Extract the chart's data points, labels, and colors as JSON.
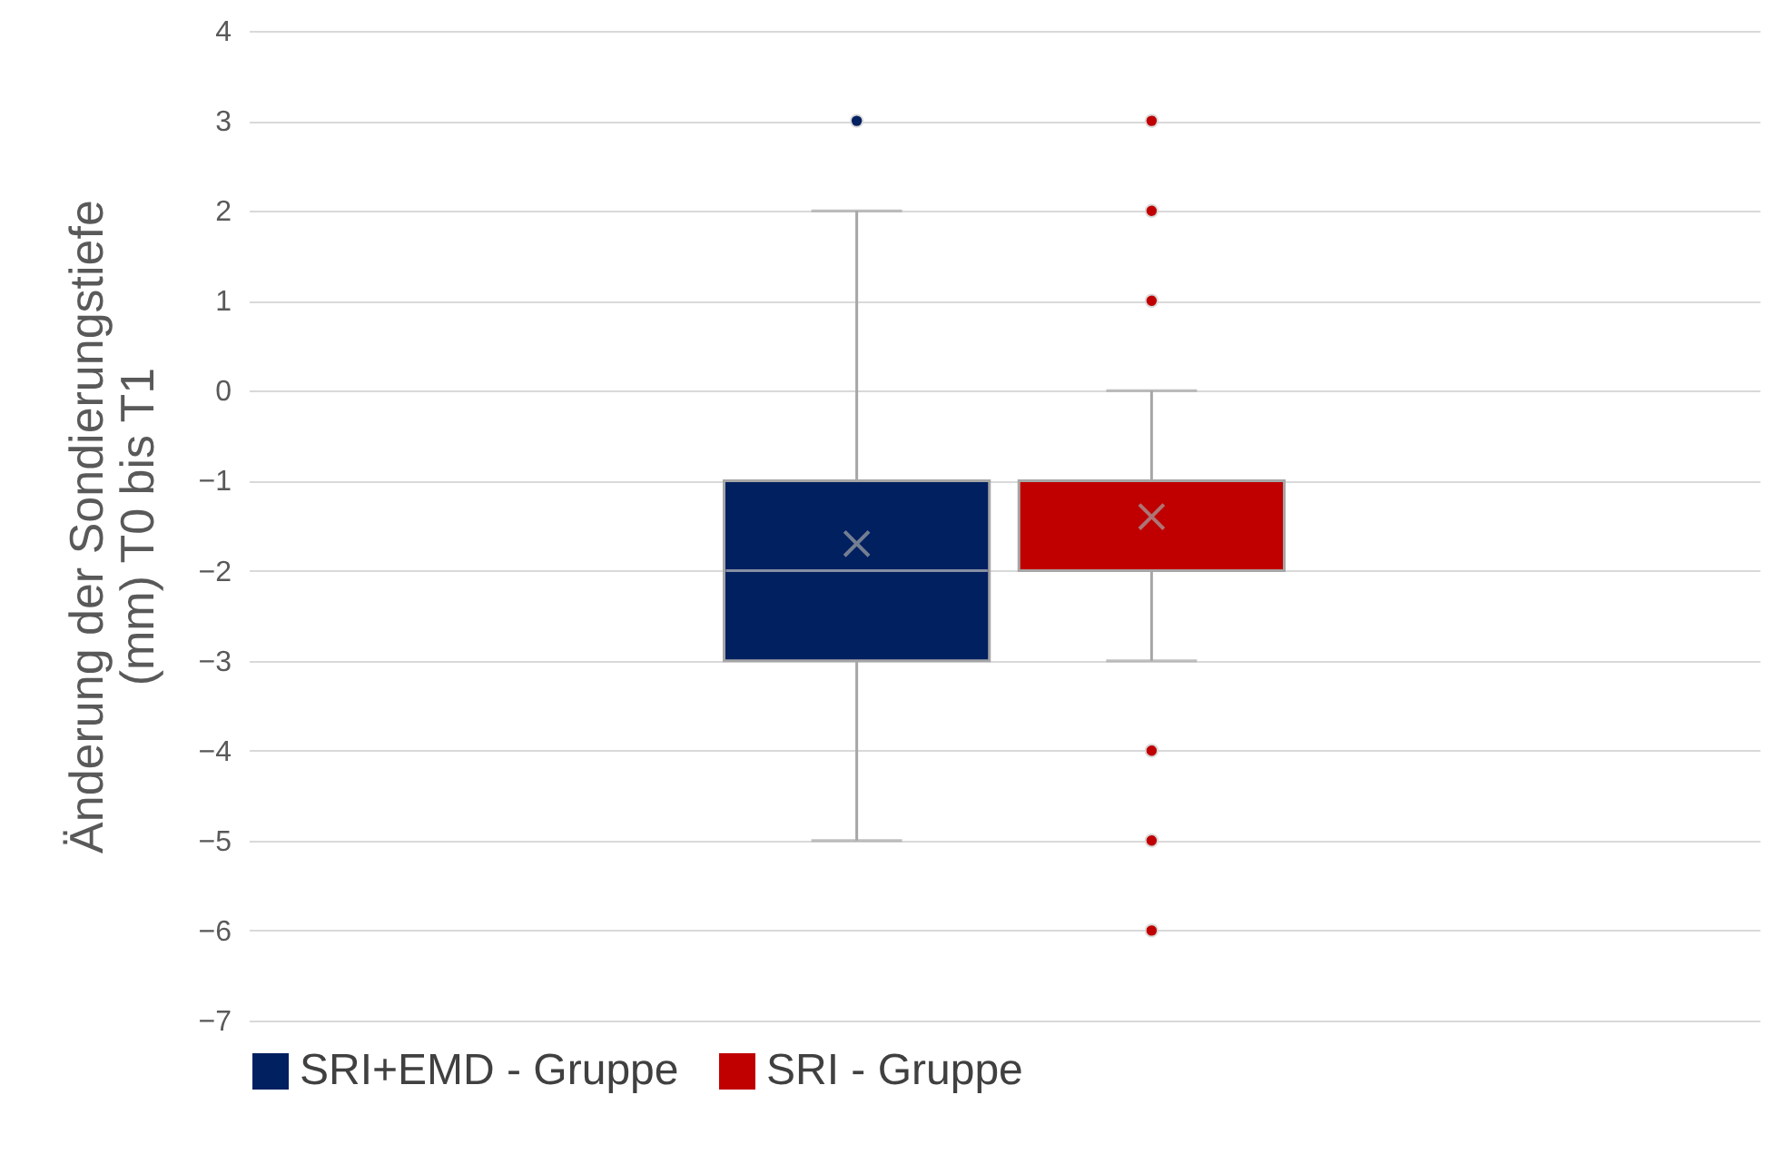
{
  "chart_data": {
    "type": "box",
    "ylabel": "Änderung der Sondierungstiefe (mm) T0 bis T1",
    "categories": [
      null
    ],
    "ylim": [
      -7,
      4
    ],
    "yticks": [
      -7,
      -6,
      -5,
      -4,
      -3,
      -2,
      -1,
      0,
      1,
      2,
      3,
      4
    ],
    "grid": "y",
    "legend": "bottom",
    "series": [
      {
        "name": "SRI+EMD - Gruppe",
        "color": "#002060",
        "boxes": [
          {
            "low": -5,
            "q1": -3,
            "median": -2,
            "q3": -1,
            "high": 2,
            "mean": -1.7,
            "outliers": [
              3
            ]
          }
        ]
      },
      {
        "name": "SRI - Gruppe",
        "color": "#c00000",
        "boxes": [
          {
            "low": -3,
            "q1": -2,
            "median": -2,
            "q3": -1,
            "high": 0,
            "mean": -1.4,
            "outliers": [
              3,
              2,
              1,
              -4,
              -5,
              -6
            ]
          }
        ]
      }
    ]
  }
}
